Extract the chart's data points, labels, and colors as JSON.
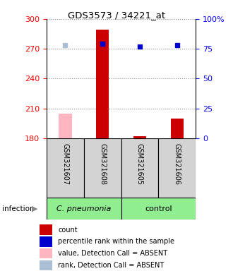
{
  "title": "GDS3573 / 34221_at",
  "samples": [
    "GSM321607",
    "GSM321608",
    "GSM321605",
    "GSM321606"
  ],
  "count_values": [
    205,
    289,
    182,
    200
  ],
  "count_absent": [
    true,
    false,
    false,
    false
  ],
  "rank_pct": [
    78,
    79,
    77,
    78
  ],
  "rank_absent": [
    true,
    false,
    false,
    false
  ],
  "ylim_left": [
    180,
    300
  ],
  "ylim_right": [
    0,
    100
  ],
  "yticks_left": [
    180,
    210,
    240,
    270,
    300
  ],
  "yticks_right": [
    0,
    25,
    50,
    75,
    100
  ],
  "group_boundaries": [
    0,
    2,
    4
  ],
  "group_labels": [
    "C. pneumonia",
    "control"
  ],
  "legend_labels": [
    "count",
    "percentile rank within the sample",
    "value, Detection Call = ABSENT",
    "rank, Detection Call = ABSENT"
  ],
  "legend_colors": [
    "#CC0000",
    "#0000CC",
    "#FFB6C1",
    "#AABFD4"
  ]
}
